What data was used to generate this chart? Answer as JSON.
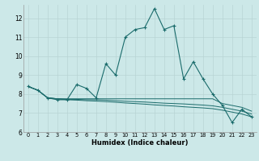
{
  "xlabel": "Humidex (Indice chaleur)",
  "xlim": [
    -0.5,
    23.5
  ],
  "ylim": [
    6,
    12.7
  ],
  "yticks": [
    6,
    7,
    8,
    9,
    10,
    11,
    12
  ],
  "xticks": [
    0,
    1,
    2,
    3,
    4,
    5,
    6,
    7,
    8,
    9,
    10,
    11,
    12,
    13,
    14,
    15,
    16,
    17,
    18,
    19,
    20,
    21,
    22,
    23
  ],
  "bg_color": "#cce8e8",
  "line_color": "#1a6b6b",
  "grid_color": "#b8d4d4",
  "series_main": [
    8.4,
    8.2,
    7.8,
    7.7,
    7.7,
    8.5,
    8.3,
    7.8,
    9.6,
    9.0,
    11.0,
    11.4,
    11.5,
    12.5,
    11.4,
    11.6,
    8.8,
    9.7,
    8.8,
    8.0,
    7.4,
    6.5,
    7.2,
    6.8
  ],
  "series_flat1": [
    8.4,
    8.2,
    7.8,
    7.75,
    7.75,
    7.75,
    7.75,
    7.75,
    7.75,
    7.75,
    7.75,
    7.75,
    7.75,
    7.75,
    7.75,
    7.75,
    7.75,
    7.75,
    7.75,
    7.75,
    7.5,
    7.4,
    7.3,
    7.1
  ],
  "series_flat2": [
    8.4,
    8.2,
    7.8,
    7.75,
    7.72,
    7.72,
    7.7,
    7.7,
    7.68,
    7.65,
    7.62,
    7.6,
    7.58,
    7.55,
    7.52,
    7.5,
    7.48,
    7.45,
    7.42,
    7.38,
    7.3,
    7.2,
    7.1,
    6.95
  ],
  "series_flat3": [
    8.4,
    8.2,
    7.8,
    7.75,
    7.7,
    7.68,
    7.65,
    7.63,
    7.6,
    7.57,
    7.53,
    7.5,
    7.47,
    7.43,
    7.4,
    7.37,
    7.33,
    7.3,
    7.27,
    7.23,
    7.15,
    7.05,
    6.95,
    6.8
  ]
}
